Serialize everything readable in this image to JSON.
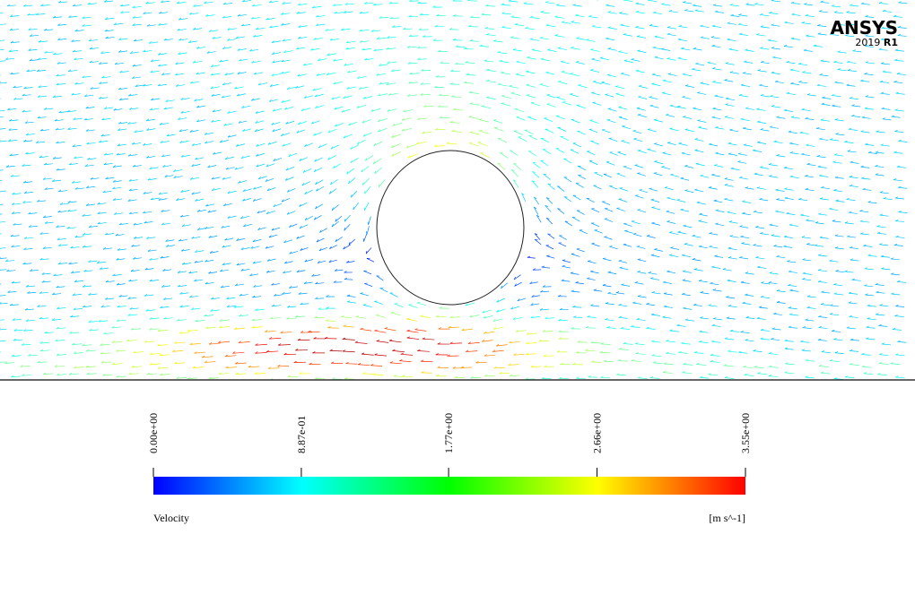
{
  "logo": {
    "brand": "ANSYS",
    "version": "2019",
    "release": "R1"
  },
  "legend": {
    "title": "Velocity",
    "units": "[m s^-1]",
    "ticks": [
      {
        "value": 0,
        "label": "0.00e+00"
      },
      {
        "value": 0.887,
        "label": "8.87e-01"
      },
      {
        "value": 1.77,
        "label": "1.77e+00"
      },
      {
        "value": 2.66,
        "label": "2.66e+00"
      },
      {
        "value": 3.55,
        "label": "3.55e+00"
      }
    ]
  }
}
